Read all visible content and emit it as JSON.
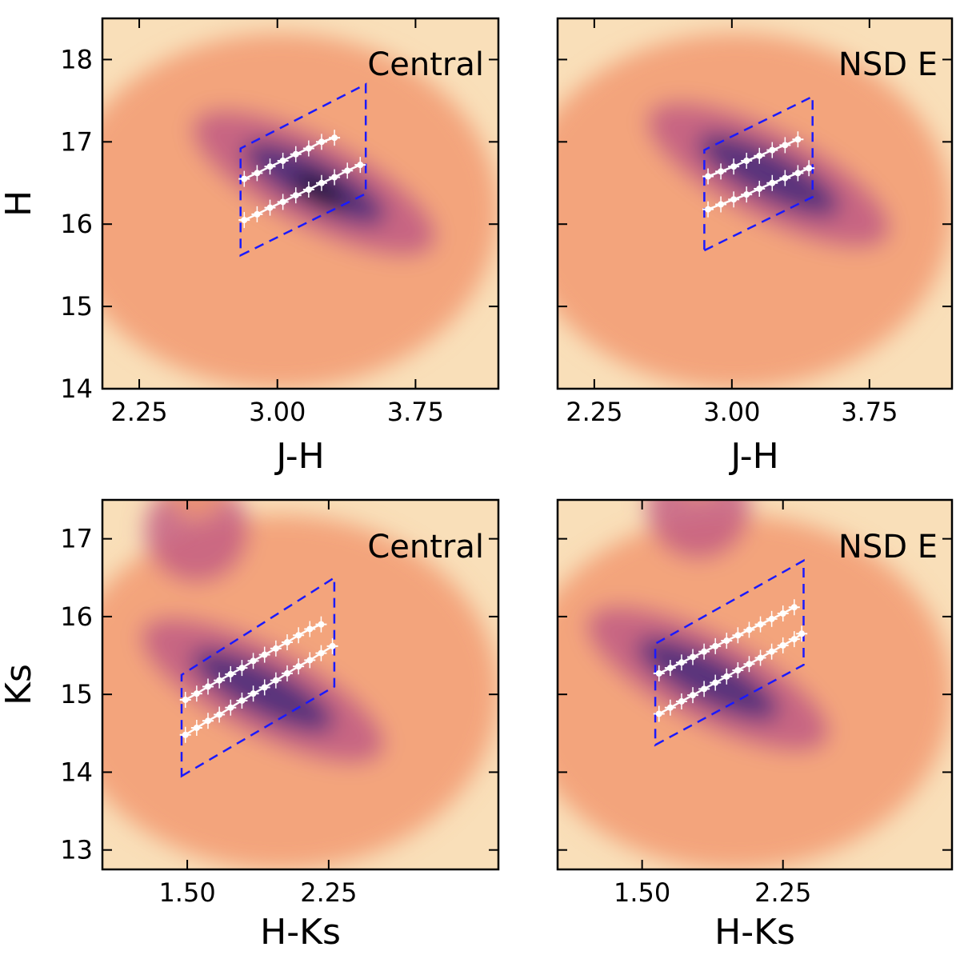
{
  "chart_data": [
    {
      "type": "heatmap",
      "title": "",
      "panel_label": "Central",
      "xlabel": "J-H",
      "ylabel": "H",
      "xlim": [
        2.05,
        4.2
      ],
      "ylim": [
        18.5,
        14.0
      ],
      "x_ticks": [
        2.25,
        3.0,
        3.75
      ],
      "x_tick_labels": [
        "2.25",
        "3.00",
        "3.75"
      ],
      "y_ticks": [
        14,
        15,
        16,
        17,
        18
      ],
      "y_tick_labels": [
        "14",
        "15",
        "16",
        "17",
        "18"
      ],
      "density_peak": {
        "x": 3.2,
        "y": 16.5
      },
      "selection_box": [
        [
          2.8,
          15.62
        ],
        [
          3.48,
          16.37
        ],
        [
          3.48,
          17.7
        ],
        [
          2.8,
          16.92
        ]
      ],
      "series": [
        {
          "name": "upper",
          "x": [
            2.82,
            2.89,
            2.96,
            3.03,
            3.1,
            3.17,
            3.24,
            3.31,
            3.38,
            3.45
          ],
          "y": [
            16.05,
            16.12,
            16.2,
            16.27,
            16.35,
            16.42,
            16.5,
            16.57,
            16.65,
            16.72
          ]
        },
        {
          "name": "lower",
          "x": [
            2.82,
            2.89,
            2.96,
            3.03,
            3.1,
            3.17,
            3.24,
            3.31
          ],
          "y": [
            16.55,
            16.62,
            16.7,
            16.77,
            16.85,
            16.92,
            17.0,
            17.05
          ]
        }
      ]
    },
    {
      "type": "heatmap",
      "title": "",
      "panel_label": "NSD E",
      "xlabel": "J-H",
      "ylabel": "",
      "xlim": [
        2.05,
        4.2
      ],
      "ylim": [
        18.5,
        14.0
      ],
      "x_ticks": [
        2.25,
        3.0,
        3.75
      ],
      "x_tick_labels": [
        "2.25",
        "3.00",
        "3.75"
      ],
      "y_ticks": [
        14,
        15,
        16,
        17,
        18
      ],
      "y_tick_labels": [],
      "density_peak": {
        "x": 3.2,
        "y": 16.6
      },
      "selection_box": [
        [
          2.85,
          15.68
        ],
        [
          3.44,
          16.33
        ],
        [
          3.44,
          17.55
        ],
        [
          2.85,
          16.9
        ]
      ],
      "series": [
        {
          "name": "upper",
          "x": [
            2.87,
            2.94,
            3.01,
            3.08,
            3.15,
            3.22,
            3.29,
            3.36,
            3.42
          ],
          "y": [
            16.18,
            16.24,
            16.3,
            16.36,
            16.43,
            16.5,
            16.56,
            16.62,
            16.68
          ]
        },
        {
          "name": "lower",
          "x": [
            2.87,
            2.94,
            3.01,
            3.08,
            3.15,
            3.22,
            3.29,
            3.36
          ],
          "y": [
            16.58,
            16.64,
            16.7,
            16.77,
            16.83,
            16.9,
            16.96,
            17.03
          ]
        }
      ]
    },
    {
      "type": "heatmap",
      "title": "",
      "panel_label": "Central",
      "xlabel": "H-Ks",
      "ylabel": "Ks",
      "xlim": [
        1.05,
        3.15
      ],
      "ylim": [
        17.5,
        12.75
      ],
      "x_ticks": [
        1.5,
        2.25
      ],
      "x_tick_labels": [
        "1.50",
        "2.25"
      ],
      "y_ticks": [
        13,
        14,
        15,
        16,
        17
      ],
      "y_tick_labels": [
        "13",
        "14",
        "15",
        "16",
        "17"
      ],
      "density_peak": {
        "x": 1.9,
        "y": 15.05
      },
      "secondary_peak": {
        "x": 1.55,
        "y": 17.1
      },
      "selection_box": [
        [
          1.47,
          13.95
        ],
        [
          2.28,
          15.1
        ],
        [
          2.28,
          16.5
        ],
        [
          1.47,
          15.25
        ]
      ],
      "series": [
        {
          "name": "upper",
          "x": [
            1.49,
            1.55,
            1.61,
            1.67,
            1.73,
            1.79,
            1.85,
            1.91,
            1.97,
            2.03,
            2.09,
            2.15,
            2.21,
            2.27
          ],
          "y": [
            14.48,
            14.57,
            14.66,
            14.74,
            14.83,
            14.92,
            15.01,
            15.09,
            15.18,
            15.27,
            15.36,
            15.44,
            15.53,
            15.62
          ]
        },
        {
          "name": "lower",
          "x": [
            1.49,
            1.55,
            1.61,
            1.67,
            1.73,
            1.79,
            1.85,
            1.91,
            1.97,
            2.03,
            2.09,
            2.15,
            2.21
          ],
          "y": [
            14.93,
            15.01,
            15.1,
            15.18,
            15.26,
            15.34,
            15.43,
            15.51,
            15.59,
            15.67,
            15.76,
            15.84,
            15.9
          ]
        }
      ]
    },
    {
      "type": "heatmap",
      "title": "",
      "panel_label": "NSD E",
      "xlabel": "H-Ks",
      "ylabel": "",
      "xlim": [
        1.05,
        3.15
      ],
      "ylim": [
        17.5,
        12.75
      ],
      "x_ticks": [
        1.5,
        2.25
      ],
      "x_tick_labels": [
        "1.50",
        "2.25"
      ],
      "y_ticks": [
        13,
        14,
        15,
        16,
        17
      ],
      "y_tick_labels": [],
      "density_peak": {
        "x": 1.85,
        "y": 15.2
      },
      "secondary_peak": {
        "x": 1.8,
        "y": 17.4
      },
      "selection_box": [
        [
          1.57,
          14.35
        ],
        [
          2.36,
          15.38
        ],
        [
          2.36,
          16.72
        ],
        [
          1.57,
          15.65
        ]
      ],
      "series": [
        {
          "name": "upper",
          "x": [
            1.59,
            1.65,
            1.71,
            1.77,
            1.83,
            1.89,
            1.95,
            2.01,
            2.07,
            2.13,
            2.19,
            2.25,
            2.31,
            2.35
          ],
          "y": [
            14.75,
            14.83,
            14.91,
            14.99,
            15.07,
            15.15,
            15.23,
            15.31,
            15.39,
            15.47,
            15.55,
            15.63,
            15.71,
            15.78
          ]
        },
        {
          "name": "lower",
          "x": [
            1.59,
            1.65,
            1.71,
            1.77,
            1.83,
            1.89,
            1.95,
            2.01,
            2.07,
            2.13,
            2.19,
            2.25,
            2.31
          ],
          "y": [
            15.27,
            15.34,
            15.41,
            15.48,
            15.55,
            15.62,
            15.69,
            15.76,
            15.83,
            15.9,
            15.97,
            16.04,
            16.12
          ]
        }
      ]
    }
  ],
  "colors": {
    "box": "#1a1aff",
    "points": "#ffffff",
    "background_low": "#f9dfb9",
    "background_mid": "#f29a72",
    "mid_high": "#c45f84",
    "peak": "#4a2a7a",
    "peak_core": "#0e0a20"
  }
}
